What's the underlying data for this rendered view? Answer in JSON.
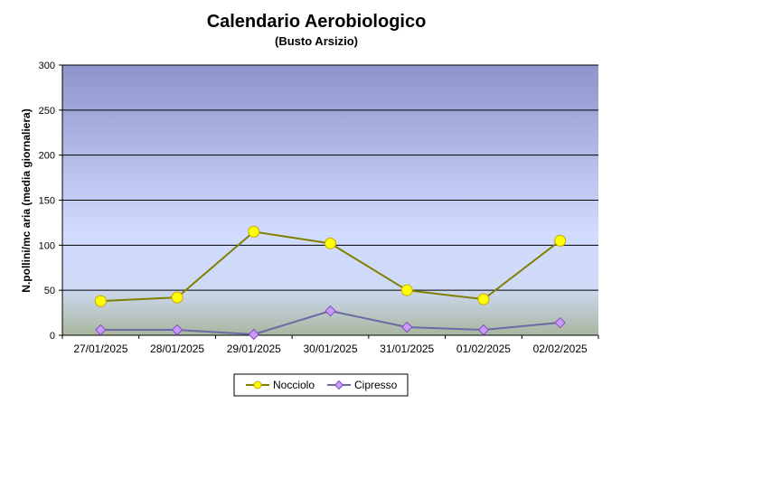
{
  "chart_data": {
    "type": "line",
    "title": "Calendario Aerobiologico",
    "subtitle": "(Busto Arsizio)",
    "ylabel": "N.pollini/mc aria (media giornaliera)",
    "xlabel": "",
    "categories": [
      "27/01/2025",
      "28/01/2025",
      "29/01/2025",
      "30/01/2025",
      "31/01/2025",
      "01/02/2025",
      "02/02/2025"
    ],
    "ylim": [
      0,
      300
    ],
    "yticks": [
      0,
      50,
      100,
      150,
      200,
      250,
      300
    ],
    "grid": true,
    "legend_position": "bottom",
    "series": [
      {
        "name": "Nocciolo",
        "values": [
          38,
          42,
          115,
          102,
          50,
          40,
          105
        ],
        "line_color": "#808000",
        "marker": "circle",
        "marker_fill": "#ffff00",
        "marker_stroke": "#c9a800"
      },
      {
        "name": "Cipresso",
        "values": [
          6,
          6,
          1,
          27,
          9,
          6,
          14
        ],
        "line_color": "#6a6aa6",
        "marker": "diamond",
        "marker_fill": "#cc99ff",
        "marker_stroke": "#7f4fbf"
      }
    ]
  }
}
